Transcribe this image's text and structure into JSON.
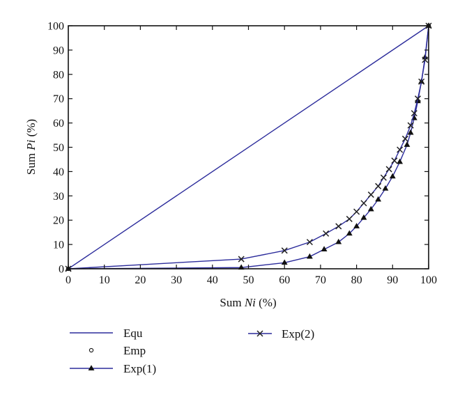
{
  "chart_data": {
    "type": "line",
    "xlabel": {
      "prefix": "Sum ",
      "italic": "Ni",
      "suffix": " (%)"
    },
    "ylabel": {
      "prefix": "Sum ",
      "italic": "Pi",
      "suffix": " (%)"
    },
    "xlim": [
      0,
      100
    ],
    "ylim": [
      0,
      100
    ],
    "x_ticks": [
      0,
      10,
      20,
      30,
      40,
      50,
      60,
      70,
      80,
      90,
      100
    ],
    "y_ticks": [
      0,
      10,
      20,
      30,
      40,
      50,
      60,
      70,
      80,
      90,
      100
    ],
    "grid": false,
    "legend_position": "bottom",
    "series": [
      {
        "name": "Equ",
        "color": "#2b2b9b",
        "marker": "none",
        "x": [
          0,
          100
        ],
        "y": [
          0,
          100
        ]
      },
      {
        "name": "Emp",
        "color": "#111111",
        "marker": "circle",
        "x": [
          0,
          100
        ],
        "y": [
          0,
          100
        ]
      },
      {
        "name": "Exp(1)",
        "color": "#2b2b9b",
        "marker": "triangle",
        "x": [
          0,
          48,
          60,
          67,
          71,
          75,
          78,
          80,
          82,
          84,
          86,
          88,
          90,
          92,
          94,
          95,
          96,
          97,
          98,
          99,
          100
        ],
        "y": [
          0,
          0.5,
          2.5,
          5,
          8,
          11,
          14.5,
          17.5,
          21,
          24.5,
          28.5,
          33,
          38,
          44,
          51,
          56,
          62,
          69,
          77,
          87,
          100
        ]
      },
      {
        "name": "Exp(2)",
        "color": "#2b2b9b",
        "marker": "x",
        "x": [
          0,
          48,
          60,
          67,
          71.5,
          75,
          78,
          80,
          82,
          84,
          86,
          87.5,
          89,
          90.5,
          92,
          93.5,
          95,
          96,
          97,
          98,
          99,
          100
        ],
        "y": [
          0,
          4,
          7.5,
          11,
          14.5,
          17.5,
          20.5,
          23.5,
          27,
          30.5,
          34,
          37.5,
          41,
          44.5,
          49,
          53.5,
          59,
          64,
          70,
          77,
          86,
          100
        ]
      }
    ]
  }
}
